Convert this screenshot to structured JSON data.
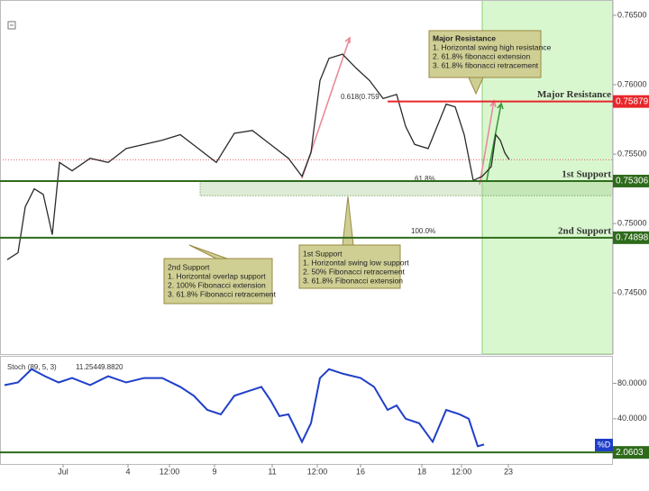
{
  "chart_data": [
    {
      "type": "line",
      "x": [
        2,
        5,
        7,
        9.5,
        12,
        14.5,
        16.5,
        20,
        25,
        30,
        35,
        40,
        45,
        50,
        55,
        60,
        65,
        70,
        75,
        80,
        83.75,
        86.25,
        88.75,
        91.25,
        95,
        98.75,
        102.5,
        106.25,
        110,
        112.5,
        115,
        118.75,
        121.25,
        123.75,
        126.25,
        128.75,
        131.25,
        133.75,
        136.25,
        137.5,
        138.75,
        140,
        141.25
      ],
      "values": [
        0.7474,
        0.7479,
        0.7512,
        0.7525,
        0.7521,
        0.7492,
        0.7544,
        0.7538,
        0.7547,
        0.7544,
        0.7554,
        0.7557,
        0.756,
        0.7564,
        0.7554,
        0.7544,
        0.7565,
        0.7567,
        0.7557,
        0.7547,
        0.7534,
        0.7551,
        0.7603,
        0.7619,
        0.7622,
        0.7612,
        0.7603,
        0.759,
        0.7593,
        0.757,
        0.7557,
        0.7554,
        0.757,
        0.7586,
        0.7584,
        0.7564,
        0.7531,
        0.7534,
        0.7541,
        0.7564,
        0.756,
        0.7551,
        0.7546
      ],
      "color": "#2b2b2b",
      "xlim": [
        0,
        170
      ],
      "ylim": [
        0.7406,
        0.7661
      ],
      "yticks": [
        {
          "value": 0.765,
          "label": "0.76500"
        },
        {
          "value": 0.76,
          "label": "0.76000"
        },
        {
          "value": 0.755,
          "label": "0.75500"
        },
        {
          "value": 0.75,
          "label": "0.75000"
        },
        {
          "value": 0.745,
          "label": "0.74500"
        }
      ],
      "levels": [
        {
          "name": "Major Resistance",
          "value": 0.75879,
          "color": "#e8262a"
        },
        {
          "name": "1st Support",
          "value": 0.75306,
          "color": "#2e6b1a"
        },
        {
          "name": "2nd Support",
          "value": 0.74898,
          "color": "#2e6b1a"
        }
      ],
      "support_zone": [
        0.752,
        0.75306
      ],
      "highlight_from": 133.75,
      "fib_labels": [
        "0.618(0.759",
        "61.8%",
        "100.0%"
      ],
      "annotations": [
        {
          "title": "Major Resistance",
          "lines": [
            "1. Horizontal swing high resistance",
            "2. 61.8% fibonacci extension",
            "3. 61.8% fibonacci retracement"
          ]
        },
        {
          "title": "1st Support",
          "lines": [
            "1. Horizontal swing low support",
            "2. 50% Fibonacci retracement",
            "3. 61.8% Fibonacci extension"
          ]
        },
        {
          "title": "2nd Support",
          "lines": [
            "1. Horizontal overlap support",
            "2. 100% Fibonacci extension",
            "3. 61.8% Fibonacci retracement"
          ]
        }
      ]
    },
    {
      "type": "line",
      "title": "Stoch (89, 5, 3)",
      "readouts": [
        "11.2544",
        "9.8820"
      ],
      "x": [
        1.25,
        5,
        8.75,
        12.5,
        16.25,
        20,
        25,
        30,
        35,
        40,
        45,
        50,
        53.75,
        57.5,
        61.25,
        65,
        68.75,
        72.5,
        75,
        77.5,
        80,
        83.75,
        86.25,
        88.75,
        91.25,
        95,
        100,
        103.75,
        107.5,
        110,
        112.5,
        116.25,
        120,
        123.75,
        127.5,
        130,
        132.5,
        134.25
      ],
      "series": [
        {
          "name": "%D",
          "color": "#1f3fc8",
          "values": [
            78,
            81,
            96,
            88,
            81,
            86,
            78,
            88,
            81,
            86,
            86,
            76,
            66,
            50,
            45,
            66,
            71,
            76,
            61,
            43,
            45,
            14,
            35,
            86,
            96,
            91,
            86,
            76,
            50,
            55,
            40,
            35,
            14,
            50,
            45,
            40,
            9,
            11
          ]
        }
      ],
      "level": 2.0603,
      "level_color": "#2e6b1a",
      "xlim": [
        0,
        170
      ],
      "ylim": [
        -11,
        111
      ],
      "yticks": [
        {
          "value": 80,
          "label": "80.0000"
        },
        {
          "value": 40,
          "label": "40.0000"
        }
      ],
      "xticks": [
        {
          "value": 17.5,
          "label": "Jul"
        },
        {
          "value": 35.5,
          "label": "4"
        },
        {
          "value": 47,
          "label": "12:00"
        },
        {
          "value": 59.5,
          "label": "9"
        },
        {
          "value": 75.5,
          "label": "11"
        },
        {
          "value": 88,
          "label": "12:00"
        },
        {
          "value": 100,
          "label": "16"
        },
        {
          "value": 117,
          "label": "18"
        },
        {
          "value": 128,
          "label": "12:00"
        },
        {
          "value": 141,
          "label": "23"
        }
      ]
    }
  ]
}
